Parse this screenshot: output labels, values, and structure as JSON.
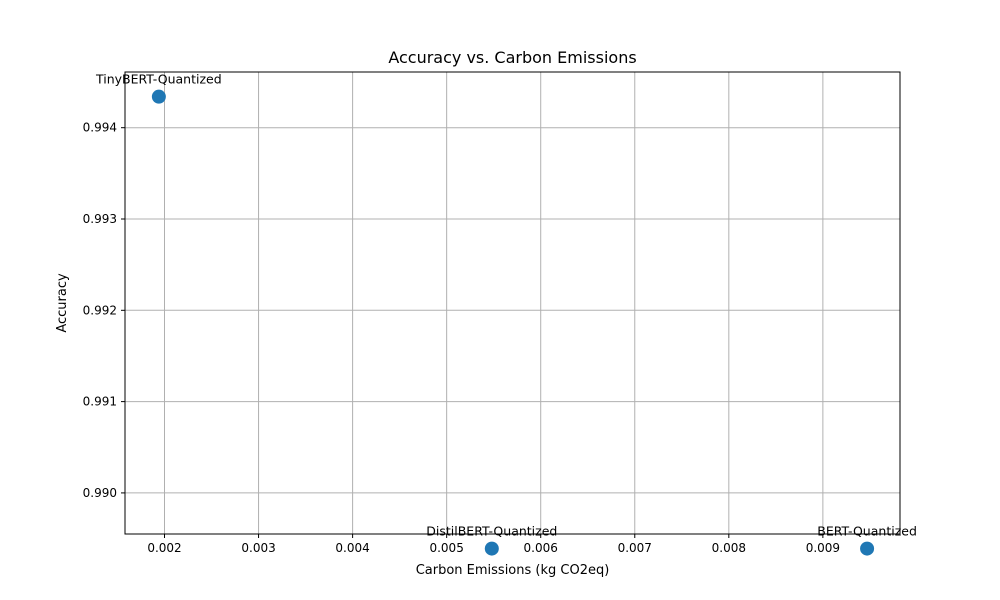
{
  "chart_data": {
    "type": "scatter",
    "title": "Accuracy vs. Carbon Emissions",
    "xlabel": "Carbon Emissions (kg CO2eq)",
    "ylabel": "Accuracy",
    "xlim": [
      0.00158,
      0.00982
    ],
    "ylim": [
      0.98955,
      0.99461
    ],
    "xticks": [
      0.002,
      0.003,
      0.004,
      0.005,
      0.006,
      0.007,
      0.008,
      0.009
    ],
    "xtick_labels": [
      "0.002",
      "0.003",
      "0.004",
      "0.005",
      "0.006",
      "0.007",
      "0.008",
      "0.009"
    ],
    "yticks": [
      0.99,
      0.991,
      0.992,
      0.993,
      0.994
    ],
    "ytick_labels": [
      "0.990",
      "0.991",
      "0.992",
      "0.993",
      "0.994"
    ],
    "grid": true,
    "marker_color": "#1f77b4",
    "points": [
      {
        "label": "TinyBERT-Quantized",
        "x": 0.00194,
        "y": 0.99434
      },
      {
        "label": "DistilBERT-Quantized",
        "x": 0.00548,
        "y": 0.98939
      },
      {
        "label": "BERT-Quantized",
        "x": 0.00947,
        "y": 0.98939
      }
    ]
  }
}
